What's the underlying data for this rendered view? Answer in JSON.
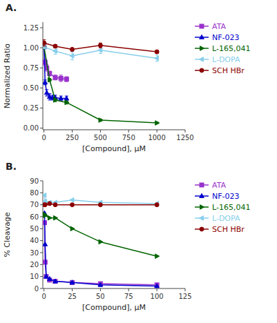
{
  "chart_data": [
    {
      "type": "line",
      "title": "A.",
      "x_label": "[Compound], μM",
      "y_label": "Normalized Ratio",
      "xlim": [
        -10,
        1250
      ],
      "ylim": [
        -0.02,
        1.32
      ],
      "xticks": [
        0,
        250,
        500,
        750,
        1000,
        1250
      ],
      "yticks": [
        {
          "value": 0.0,
          "label": "0.00"
        },
        0.25,
        {
          "value": 0.5,
          "label": "0.50"
        },
        0.75,
        {
          "value": 1.0,
          "label": "1.00"
        },
        1.25
      ],
      "grid": false,
      "legend": "right",
      "series": [
        {
          "name": "ATA",
          "color": "#9932CC",
          "marker": "square",
          "x": [
            1,
            10,
            25,
            50,
            100,
            150,
            200
          ],
          "values": [
            1.01,
            0.82,
            0.75,
            0.68,
            0.63,
            0.62,
            0.61
          ],
          "yerr": [
            0.02,
            0.04,
            0.04,
            0.03,
            0.03,
            0.04,
            0.03
          ]
        },
        {
          "name": "NF-023",
          "color": "#0000CD",
          "marker": "triangle-up",
          "x": [
            1,
            10,
            25,
            50,
            75,
            100,
            150,
            200
          ],
          "values": [
            1.01,
            0.57,
            0.44,
            0.39,
            0.38,
            0.38,
            0.37,
            0.37
          ],
          "yerr": [
            0.02,
            0.03,
            0.04,
            0.04,
            0.03,
            0.03,
            0.03,
            0.03
          ]
        },
        {
          "name": "L-165,041",
          "color": "#006400",
          "marker": "triangle-right",
          "x": [
            1,
            50,
            100,
            200,
            500,
            1000
          ],
          "values": [
            1.01,
            0.6,
            0.35,
            0.32,
            0.1,
            0.065
          ],
          "yerr": [
            0.01,
            0.02,
            0.02,
            0.02,
            0.015,
            0.01
          ]
        },
        {
          "name": "L-DOPA",
          "color": "#87CEEB",
          "marker": "triangle-left",
          "x": [
            1,
            100,
            250,
            500,
            1000
          ],
          "values": [
            1.01,
            0.96,
            0.9,
            0.97,
            0.87
          ],
          "yerr": [
            0.02,
            0.04,
            0.05,
            0.04,
            0.04
          ]
        },
        {
          "name": "SCH HBr",
          "color": "#8B0000",
          "marker": "circle",
          "x": [
            1,
            100,
            250,
            500,
            1000
          ],
          "values": [
            1.06,
            1.02,
            0.98,
            1.03,
            0.95
          ],
          "yerr": [
            0.04,
            0.02,
            0.02,
            0.03,
            0.02
          ]
        }
      ]
    },
    {
      "type": "line",
      "title": "B.",
      "x_label": "[Compound], μM",
      "y_label": "% Cleavage",
      "xlim": [
        -1,
        125
      ],
      "ylim": [
        0,
        90
      ],
      "xticks": [
        0,
        25,
        50,
        75,
        100,
        125
      ],
      "yticks": [
        0,
        10,
        20,
        30,
        40,
        50,
        60,
        70,
        80,
        90
      ],
      "grid": false,
      "legend": "right",
      "series": [
        {
          "name": "ATA",
          "color": "#9932CC",
          "marker": "square",
          "x": [
            0.5,
            1,
            2,
            5,
            10,
            25,
            50,
            100
          ],
          "values": [
            55,
            22,
            10,
            7,
            6,
            5,
            4,
            3
          ]
        },
        {
          "name": "NF-023",
          "color": "#0000CD",
          "marker": "triangle-up",
          "x": [
            0.5,
            1,
            2,
            5,
            10,
            25,
            50,
            100
          ],
          "values": [
            63,
            37,
            10,
            8,
            6,
            5,
            3,
            2
          ]
        },
        {
          "name": "L-165,041",
          "color": "#006400",
          "marker": "triangle-right",
          "x": [
            0.5,
            1,
            5,
            10,
            25,
            50,
            100
          ],
          "values": [
            62,
            61,
            59,
            59,
            50,
            39,
            27
          ]
        },
        {
          "name": "L-DOPA",
          "color": "#87CEEB",
          "marker": "triangle-left",
          "x": [
            0.5,
            1,
            5,
            10,
            25,
            50,
            100
          ],
          "values": [
            78,
            73,
            72,
            72,
            74,
            72,
            71
          ]
        },
        {
          "name": "SCH HBr",
          "color": "#8B0000",
          "marker": "circle",
          "x": [
            0.5,
            1,
            5,
            10,
            25,
            50,
            100
          ],
          "values": [
            70,
            70,
            71,
            70,
            70,
            70,
            70
          ]
        }
      ]
    }
  ]
}
